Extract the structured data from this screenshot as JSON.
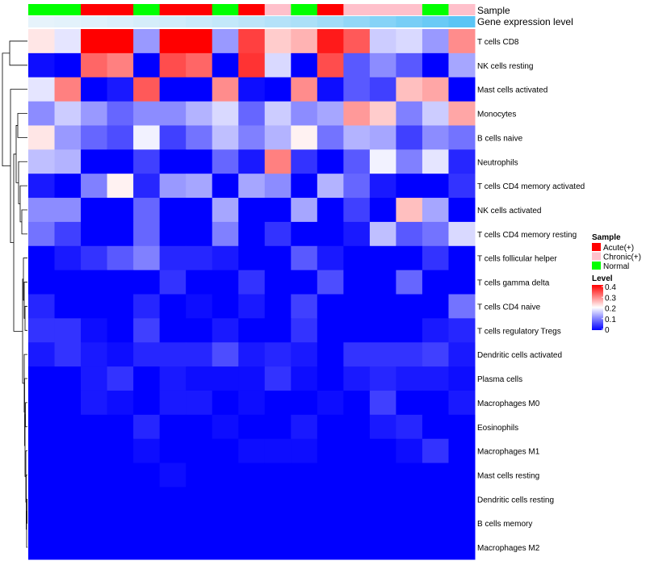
{
  "chart_data": {
    "type": "heatmap",
    "annotation_titles": [
      "Sample",
      "Gene expression level"
    ],
    "column_groups": [
      "Normal",
      "Normal",
      "Acute(+)",
      "Acute(+)",
      "Normal",
      "Acute(+)",
      "Acute(+)",
      "Normal",
      "Acute(+)",
      "Chronic(+)",
      "Normal",
      "Acute(+)",
      "Chronic(+)",
      "Chronic(+)",
      "Chronic(+)",
      "Normal",
      "Chronic(+)"
    ],
    "column_expression": [
      0.0,
      0.02,
      0.05,
      0.08,
      0.12,
      0.16,
      0.2,
      0.25,
      0.3,
      0.36,
      0.42,
      0.5,
      0.6,
      0.7,
      0.8,
      0.9,
      1.0
    ],
    "rows": [
      "T cells CD8",
      "NK cells resting",
      "Mast cells activated",
      "Monocytes",
      "B cells naive",
      "Neutrophils",
      "T cells CD4 memory activated",
      "NK cells activated",
      "T cells CD4 memory resting",
      "T cells follicular helper",
      "T cells gamma delta",
      "T cells CD4 naive",
      "T cells regulatory  Tregs",
      "Dendritic cells activated",
      "Plasma cells",
      "Macrophages M0",
      "Eosinophils",
      "Macrophages M1",
      "Mast cells resting",
      "Dendritic cells resting",
      "B cells memory",
      "Macrophages M2"
    ],
    "values": [
      [
        0.22,
        0.18,
        0.4,
        0.4,
        0.12,
        0.4,
        0.4,
        0.12,
        0.35,
        0.24,
        0.26,
        0.38,
        0.33,
        0.16,
        0.17,
        0.12,
        0.29
      ],
      [
        0.01,
        0.0,
        0.32,
        0.3,
        0.0,
        0.34,
        0.32,
        0.0,
        0.36,
        0.17,
        0.0,
        0.34,
        0.07,
        0.11,
        0.07,
        0.0,
        0.13
      ],
      [
        0.18,
        0.3,
        0.0,
        0.02,
        0.33,
        0.0,
        0.0,
        0.29,
        0.01,
        0.0,
        0.29,
        0.01,
        0.07,
        0.05,
        0.25,
        0.27,
        0.0
      ],
      [
        0.11,
        0.16,
        0.12,
        0.08,
        0.11,
        0.11,
        0.14,
        0.17,
        0.08,
        0.16,
        0.11,
        0.13,
        0.28,
        0.24,
        0.1,
        0.16,
        0.27
      ],
      [
        0.22,
        0.12,
        0.08,
        0.06,
        0.19,
        0.05,
        0.09,
        0.15,
        0.1,
        0.14,
        0.21,
        0.09,
        0.14,
        0.13,
        0.05,
        0.11,
        0.09
      ],
      [
        0.15,
        0.14,
        0.0,
        0.0,
        0.05,
        0.0,
        0.0,
        0.08,
        0.02,
        0.3,
        0.04,
        0.0,
        0.07,
        0.19,
        0.1,
        0.18,
        0.03
      ],
      [
        0.02,
        0.0,
        0.1,
        0.21,
        0.03,
        0.12,
        0.13,
        0.0,
        0.13,
        0.11,
        0.0,
        0.14,
        0.08,
        0.02,
        0.0,
        0.0,
        0.04
      ],
      [
        0.11,
        0.11,
        0.0,
        0.0,
        0.08,
        0.0,
        0.0,
        0.13,
        0.0,
        0.0,
        0.13,
        0.0,
        0.05,
        0.0,
        0.25,
        0.13,
        0.0
      ],
      [
        0.09,
        0.05,
        0.0,
        0.0,
        0.08,
        0.0,
        0.0,
        0.1,
        0.0,
        0.04,
        0.0,
        0.0,
        0.02,
        0.15,
        0.07,
        0.09,
        0.17
      ],
      [
        0.0,
        0.02,
        0.04,
        0.07,
        0.1,
        0.03,
        0.03,
        0.02,
        0.0,
        0.0,
        0.07,
        0.02,
        0.0,
        0.0,
        0.0,
        0.04,
        0.0
      ],
      [
        0.0,
        0.0,
        0.0,
        0.0,
        0.0,
        0.04,
        0.0,
        0.0,
        0.04,
        0.0,
        0.0,
        0.06,
        0.0,
        0.0,
        0.08,
        0.0,
        0.0
      ],
      [
        0.03,
        0.0,
        0.0,
        0.0,
        0.03,
        0.0,
        0.01,
        0.0,
        0.02,
        0.0,
        0.05,
        0.0,
        0.0,
        0.0,
        0.0,
        0.0,
        0.09
      ],
      [
        0.04,
        0.04,
        0.01,
        0.0,
        0.05,
        0.0,
        0.0,
        0.02,
        0.0,
        0.0,
        0.04,
        0.0,
        0.0,
        0.0,
        0.0,
        0.02,
        0.03
      ],
      [
        0.02,
        0.04,
        0.02,
        0.01,
        0.03,
        0.03,
        0.03,
        0.06,
        0.02,
        0.03,
        0.02,
        0.0,
        0.04,
        0.04,
        0.04,
        0.05,
        0.02
      ],
      [
        0.0,
        0.0,
        0.02,
        0.04,
        0.0,
        0.02,
        0.01,
        0.01,
        0.01,
        0.04,
        0.01,
        0.0,
        0.02,
        0.03,
        0.02,
        0.02,
        0.01
      ],
      [
        0.0,
        0.0,
        0.02,
        0.01,
        0.0,
        0.02,
        0.02,
        0.0,
        0.01,
        0.0,
        0.0,
        0.01,
        0.0,
        0.05,
        0.0,
        0.0,
        0.02
      ],
      [
        0.0,
        0.0,
        0.0,
        0.0,
        0.03,
        0.0,
        0.0,
        0.01,
        0.0,
        0.0,
        0.02,
        0.0,
        0.0,
        0.02,
        0.03,
        0.0,
        0.0
      ],
      [
        0.0,
        0.0,
        0.0,
        0.0,
        0.01,
        0.0,
        0.0,
        0.0,
        0.01,
        0.01,
        0.01,
        0.0,
        0.0,
        0.0,
        0.01,
        0.04,
        0.0
      ],
      [
        0.0,
        0.0,
        0.0,
        0.0,
        0.0,
        0.01,
        0.0,
        0.0,
        0.0,
        0.0,
        0.0,
        0.0,
        0.0,
        0.0,
        0.0,
        0.0,
        0.0
      ],
      [
        0.0,
        0.0,
        0.0,
        0.0,
        0.0,
        0.0,
        0.0,
        0.0,
        0.0,
        0.0,
        0.0,
        0.0,
        0.0,
        0.0,
        0.0,
        0.0,
        0.0
      ],
      [
        0.0,
        0.0,
        0.0,
        0.0,
        0.0,
        0.0,
        0.0,
        0.0,
        0.0,
        0.0,
        0.0,
        0.0,
        0.0,
        0.0,
        0.0,
        0.0,
        0.0
      ],
      [
        0.0,
        0.0,
        0.0,
        0.0,
        0.0,
        0.0,
        0.0,
        0.0,
        0.0,
        0.0,
        0.0,
        0.0,
        0.0,
        0.0,
        0.0,
        0.0,
        0.0
      ]
    ],
    "color_scale": {
      "min": 0,
      "max": 0.4,
      "low": "#0000ff",
      "mid": "#ffffff",
      "high": "#ff0000"
    },
    "expression_gradient": {
      "low": "#e6f3fb",
      "high": "#5bc5f5"
    },
    "legend": {
      "sample_title": "Sample",
      "sample_entries": [
        {
          "label": "Acute(+)",
          "color": "#ff0000"
        },
        {
          "label": "Chronic(+)",
          "color": "#ffc0cb"
        },
        {
          "label": "Normal",
          "color": "#00ff00"
        }
      ],
      "level_title": "Level",
      "level_ticks": [
        "0.4",
        "0.3",
        "0.2",
        "0.1",
        "0"
      ],
      "level_tick_values": [
        0.4,
        0.3,
        0.2,
        0.1,
        0
      ]
    },
    "dendrogram": "left"
  }
}
